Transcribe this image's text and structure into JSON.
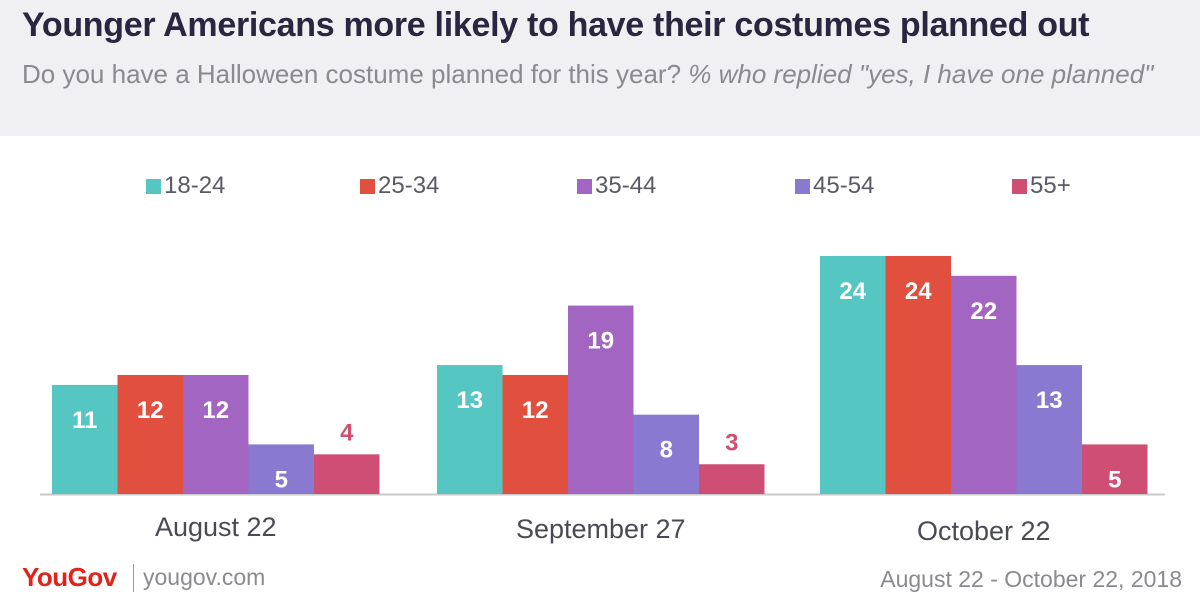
{
  "header": {
    "title": "Younger Americans more likely to have their costumes planned out",
    "subtitle_question": "Do you have a Halloween costume planned for this year?",
    "subtitle_qualifier": "% who replied \"yes, I have one planned\""
  },
  "footer": {
    "logo": "YouGov",
    "url": "yougov.com",
    "date_range": "August 22 - October 22, 2018"
  },
  "chart_data": {
    "type": "bar",
    "categories": [
      "August 22",
      "September 27",
      "October 22"
    ],
    "series": [
      {
        "name": "18-24",
        "color": "#55c6c1",
        "values": [
          11,
          13,
          24
        ]
      },
      {
        "name": "25-34",
        "color": "#e1503f",
        "values": [
          12,
          12,
          24
        ]
      },
      {
        "name": "35-44",
        "color": "#a365c2",
        "values": [
          12,
          19,
          22
        ]
      },
      {
        "name": "45-54",
        "color": "#8a79d0",
        "values": [
          5,
          8,
          13
        ]
      },
      {
        "name": "55+",
        "color": "#cf4f74",
        "values": [
          4,
          3,
          5
        ]
      }
    ],
    "ylim": [
      0,
      24
    ],
    "legend_position": "top",
    "grid": false
  }
}
